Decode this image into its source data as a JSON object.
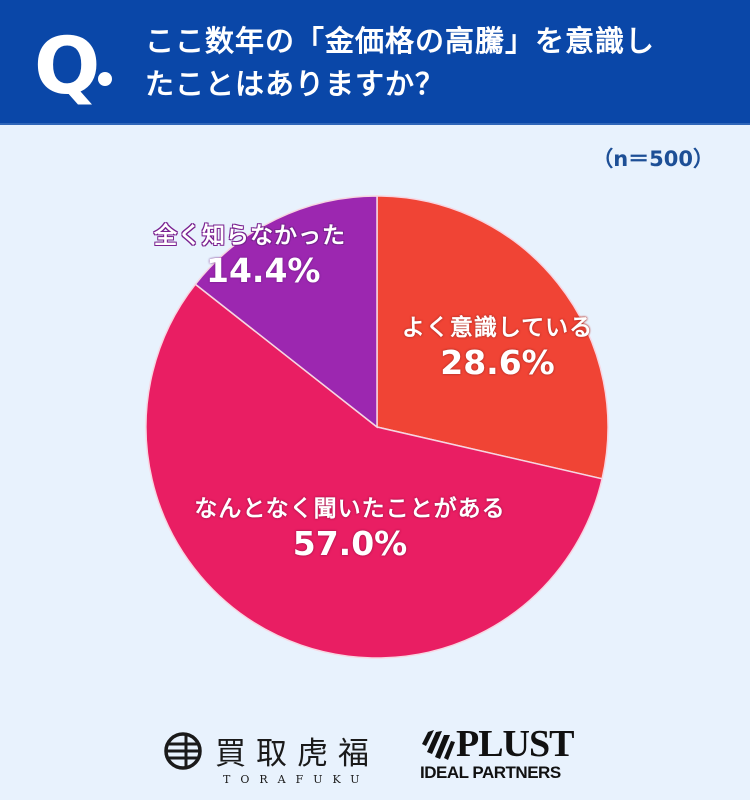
{
  "header": {
    "q_label": "Q",
    "title_line1": "ここ数年の「金価格の高騰」を意識し",
    "title_line2": "たことはありますか？",
    "bg_color": "#0a47a8"
  },
  "sample_size": "（n＝500）",
  "chart_data": {
    "type": "pie",
    "title": "ここ数年の「金価格の高騰」を意識したことはありますか？",
    "n": 500,
    "start_angle": "top (12 o'clock), clockwise",
    "categories": [
      "よく意識している",
      "なんとなく聞いたことがある",
      "全く知らなかった"
    ],
    "values": [
      28.6,
      57.0,
      14.4
    ],
    "colors": [
      "#f04435",
      "#e91e63",
      "#9c27b0"
    ],
    "labels": [
      "28.6%",
      "57.0%",
      "14.4%"
    ]
  },
  "slices": [
    {
      "name": "よく意識している",
      "pct": "28.6%"
    },
    {
      "name": "なんとなく聞いたことがある",
      "pct": "57.0%"
    },
    {
      "name": "全く知らなかった",
      "pct": "14.4%"
    }
  ],
  "footer": {
    "torafuku_name": "買取虎福",
    "torafuku_sub": "TORAFUKU",
    "plust_name": "PLUST",
    "plust_sub": "IDEAL PARTNERS"
  },
  "colors": {
    "background": "#e8f2fd",
    "sample_text": "#1d4f96"
  }
}
